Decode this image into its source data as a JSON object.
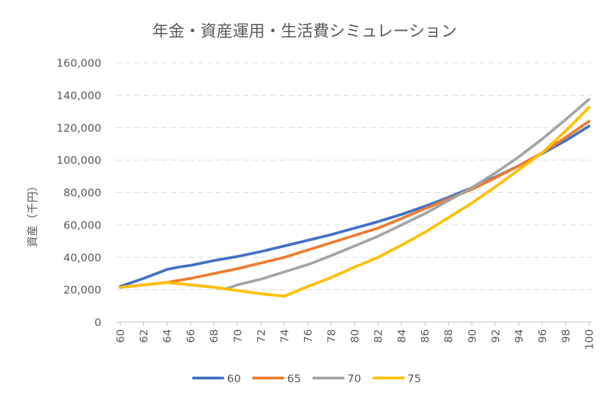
{
  "chart_data": {
    "type": "line",
    "title": "年金・資産運用・生活費シミュレーション",
    "ylabel": "資産（千円）",
    "xlabel": "",
    "ylim": [
      0,
      160000
    ],
    "xlim": [
      60,
      100
    ],
    "y_ticks": [
      "0",
      "20,000",
      "40,000",
      "60,000",
      "80,000",
      "100,000",
      "120,000",
      "140,000",
      "160,000"
    ],
    "y_tick_values": [
      0,
      20000,
      40000,
      60000,
      80000,
      100000,
      120000,
      140000,
      160000
    ],
    "x_ticks": [
      "60",
      "62",
      "64",
      "66",
      "68",
      "70",
      "72",
      "74",
      "76",
      "78",
      "80",
      "82",
      "84",
      "86",
      "88",
      "90",
      "92",
      "94",
      "96",
      "98",
      "100"
    ],
    "x_tick_values": [
      60,
      62,
      64,
      66,
      68,
      70,
      72,
      74,
      76,
      78,
      80,
      82,
      84,
      86,
      88,
      90,
      92,
      94,
      96,
      98,
      100
    ],
    "grid": true,
    "legend_position": "bottom",
    "series": [
      {
        "name": "60",
        "color": "#4472C4",
        "x": [
          60,
          62,
          64,
          65,
          66,
          68,
          70,
          71,
          72,
          74,
          76,
          78,
          79,
          80,
          81,
          82,
          84,
          86,
          88,
          90,
          92,
          94,
          96,
          98,
          100
        ],
        "values": [
          22000,
          27000,
          32500,
          34000,
          35000,
          38000,
          40500,
          42000,
          43500,
          47000,
          50500,
          54000,
          56000,
          58000,
          60000,
          62000,
          66500,
          71500,
          77000,
          83000,
          89500,
          96500,
          104000,
          112000,
          121000
        ]
      },
      {
        "name": "65",
        "color": "#ED7D31",
        "x": [
          60,
          62,
          64,
          66,
          68,
          70,
          72,
          74,
          76,
          78,
          80,
          82,
          84,
          86,
          88,
          90,
          92,
          94,
          96,
          98,
          100
        ],
        "values": [
          21500,
          23000,
          24500,
          27000,
          30000,
          33000,
          36500,
          40000,
          44500,
          49000,
          53500,
          58000,
          64000,
          70000,
          76000,
          82000,
          89000,
          96500,
          104500,
          114000,
          124000
        ]
      },
      {
        "name": "70",
        "color": "#A5A5A5",
        "x": [
          60,
          62,
          64,
          66,
          68,
          69,
          70,
          72,
          74,
          76,
          78,
          80,
          82,
          84,
          86,
          88,
          90,
          92,
          94,
          96,
          98,
          100
        ],
        "values": [
          21500,
          23000,
          24500,
          23000,
          21500,
          20500,
          23000,
          26500,
          31000,
          35500,
          41000,
          47000,
          53000,
          60000,
          67000,
          75000,
          83000,
          92000,
          102000,
          113000,
          125000,
          137500
        ]
      },
      {
        "name": "75",
        "color": "#FFC000",
        "x": [
          60,
          62,
          64,
          66,
          68,
          70,
          72,
          74,
          76,
          78,
          80,
          82,
          84,
          86,
          88,
          90,
          92,
          94,
          96,
          98,
          100
        ],
        "values": [
          21500,
          23000,
          24500,
          23000,
          21500,
          19500,
          17500,
          16000,
          22000,
          27500,
          34000,
          40000,
          47500,
          55500,
          64500,
          73500,
          83500,
          94000,
          104500,
          118000,
          132500
        ]
      }
    ]
  }
}
